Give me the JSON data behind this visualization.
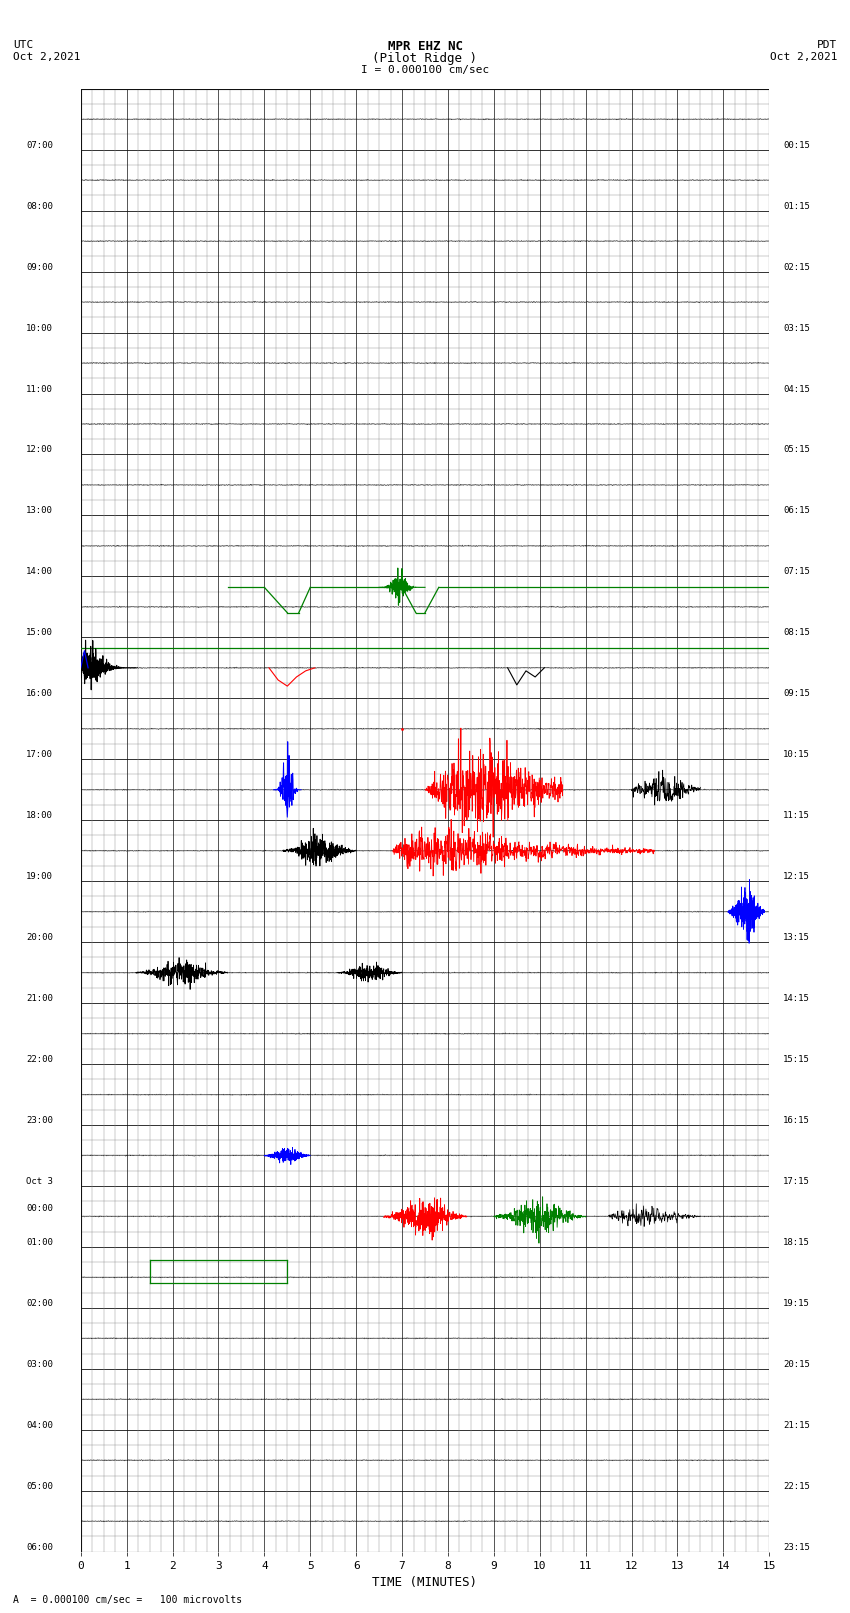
{
  "title_line1": "MPR EHZ NC",
  "title_line2": "(Pilot Ridge )",
  "title_line3": "I = 0.000100 cm/sec",
  "left_label_line1": "UTC",
  "left_label_line2": "Oct 2,2021",
  "right_label_line1": "PDT",
  "right_label_line2": "Oct 2,2021",
  "bottom_label": "TIME (MINUTES)",
  "bottom_note": "A  = 0.000100 cm/sec =   100 microvolts",
  "n_rows": 24,
  "minutes_per_row": 15,
  "fig_width": 8.5,
  "fig_height": 16.13,
  "bg_color": "#ffffff",
  "utc_labels": [
    "07:00",
    "08:00",
    "09:00",
    "10:00",
    "11:00",
    "12:00",
    "13:00",
    "14:00",
    "15:00",
    "16:00",
    "17:00",
    "18:00",
    "19:00",
    "20:00",
    "21:00",
    "22:00",
    "23:00",
    "Oct 3\n00:00",
    "01:00",
    "02:00",
    "03:00",
    "04:00",
    "05:00",
    "06:00"
  ],
  "pdt_labels": [
    "00:15",
    "01:15",
    "02:15",
    "03:15",
    "04:15",
    "05:15",
    "06:15",
    "07:15",
    "08:15",
    "09:15",
    "10:15",
    "11:15",
    "12:15",
    "13:15",
    "14:15",
    "15:15",
    "16:15",
    "17:15",
    "18:15",
    "19:15",
    "20:15",
    "21:15",
    "22:15",
    "23:15"
  ]
}
